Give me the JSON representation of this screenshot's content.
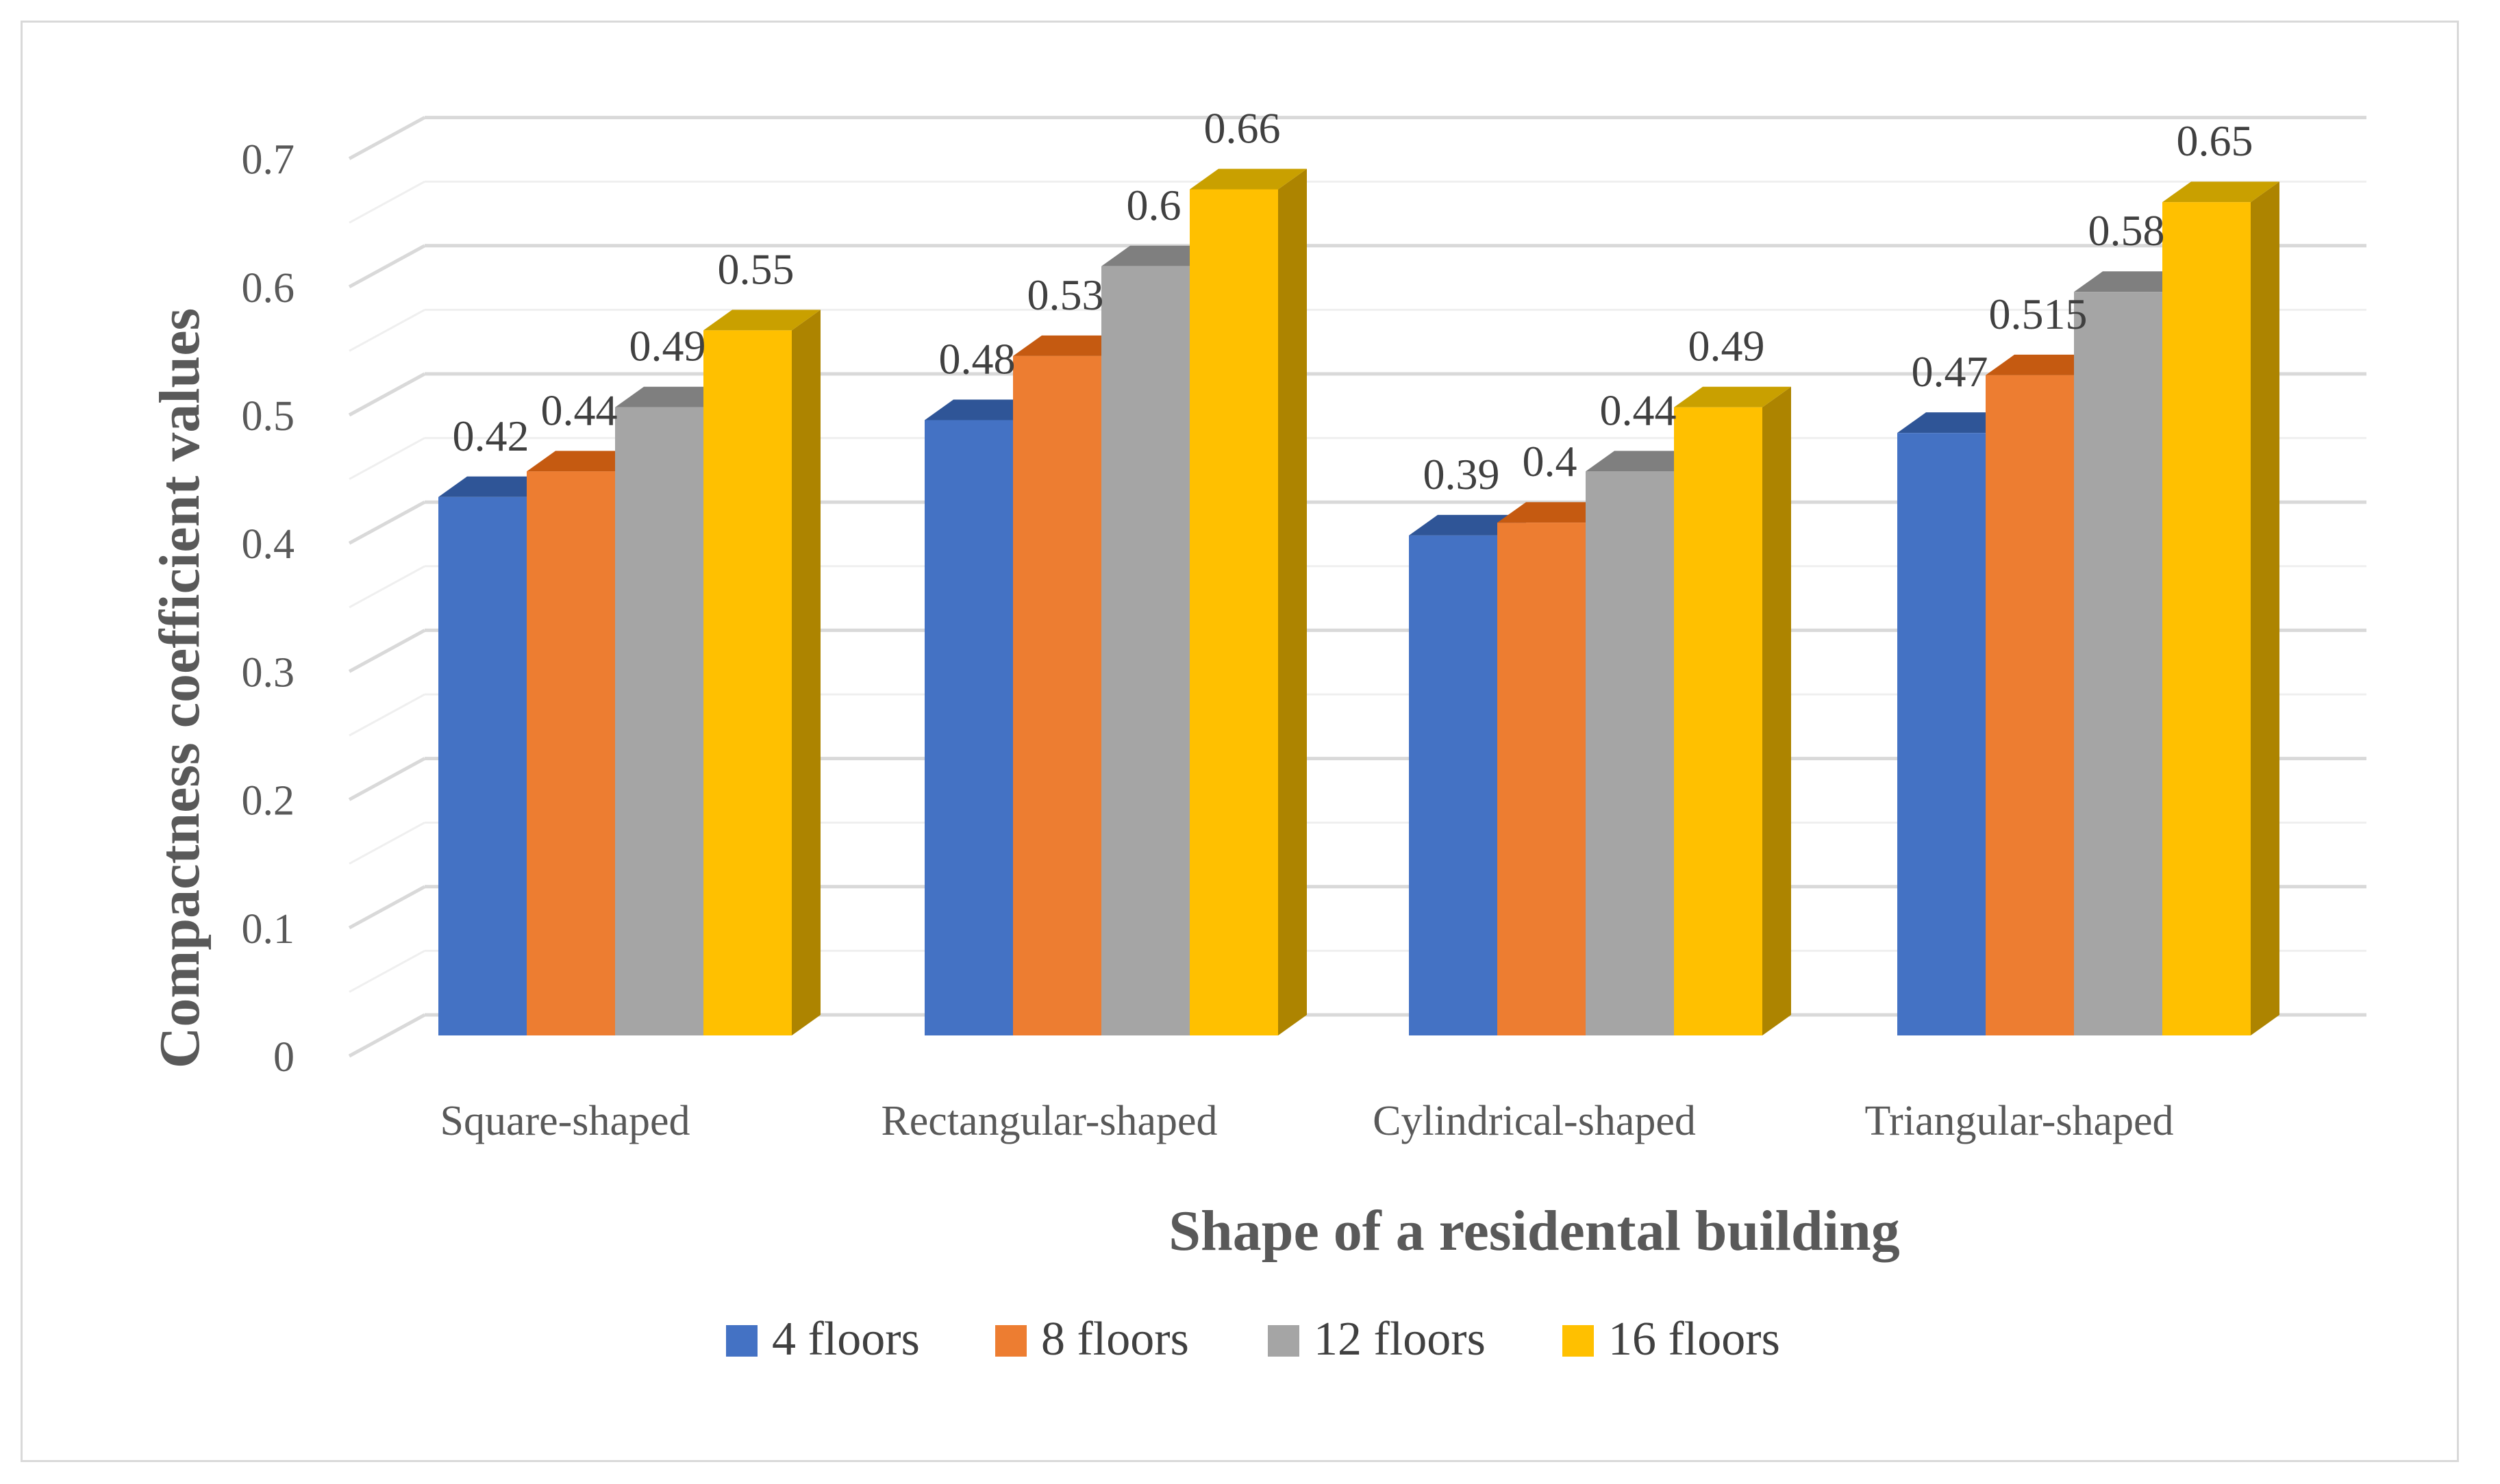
{
  "chart_data": {
    "type": "bar",
    "title": "",
    "xlabel": "Shape of a residental building",
    "ylabel": "Compactness coefficient values",
    "categories": [
      "Square-shaped",
      "Rectangular-shaped",
      "Cylindrical-shaped",
      "Triangular-shaped"
    ],
    "series": [
      {
        "name": "4 floors",
        "values": [
          0.42,
          0.48,
          0.39,
          0.47
        ],
        "labels": [
          "0.42",
          "0.48",
          "0.39",
          "0.47"
        ],
        "color": "#4472C4",
        "top": "#2F5597",
        "side": "#2F5597"
      },
      {
        "name": "8 floors",
        "values": [
          0.44,
          0.53,
          0.4,
          0.515
        ],
        "labels": [
          "0.44",
          "0.53",
          "0.4",
          "0.515"
        ],
        "color": "#ED7D31",
        "top": "#C55A11",
        "side": "#C55A11"
      },
      {
        "name": "12 floors",
        "values": [
          0.49,
          0.6,
          0.44,
          0.58
        ],
        "labels": [
          "0.49",
          "0.6",
          "0.44",
          "0.58"
        ],
        "color": "#A5A5A5",
        "top": "#7F7F7F",
        "side": "#7F7F7F"
      },
      {
        "name": "16 floors",
        "values": [
          0.55,
          0.66,
          0.49,
          0.65
        ],
        "labels": [
          "0.55",
          "0.66",
          "0.49",
          "0.65"
        ],
        "color": "#FFC000",
        "top": "#C9A000",
        "side": "#AD8400"
      }
    ],
    "yticks": [
      "0",
      "0.1",
      "0.2",
      "0.3",
      "0.4",
      "0.5",
      "0.6",
      "0.7"
    ],
    "ylim": [
      0,
      0.7
    ],
    "grid": true,
    "legend": "bottom-center"
  }
}
